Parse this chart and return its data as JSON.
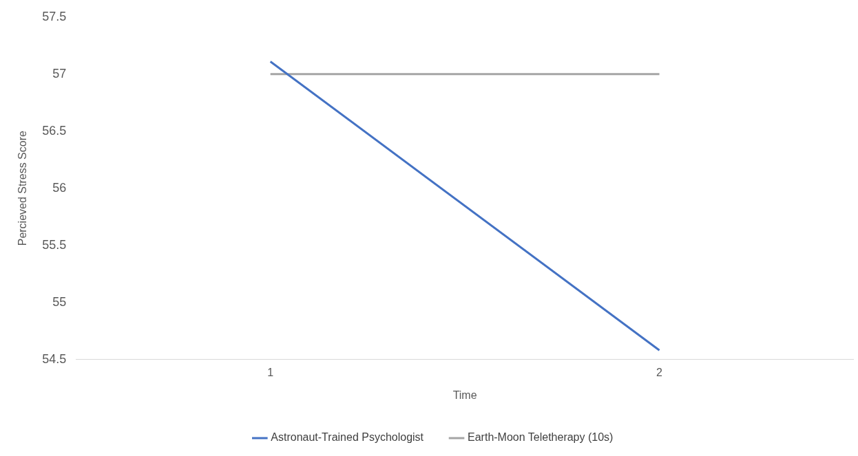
{
  "chart_data": {
    "type": "line",
    "xlabel": "Time",
    "ylabel": "Percieved Stress Score",
    "categories": [
      "1",
      "2"
    ],
    "series": [
      {
        "name": "Astronaut-Trained Psychologist",
        "color": "#4472c4",
        "values": [
          57.11,
          54.58
        ]
      },
      {
        "name": "Earth-Moon Teletherapy (10s)",
        "color": "#a5a5a5",
        "values": [
          57,
          57
        ]
      }
    ],
    "ylim": [
      54.5,
      57.5
    ],
    "yticks": [
      54.5,
      55,
      55.5,
      56,
      56.5,
      57,
      57.5
    ],
    "grid": false,
    "legend": "bottom",
    "marker": "none",
    "line_style": "solid"
  }
}
